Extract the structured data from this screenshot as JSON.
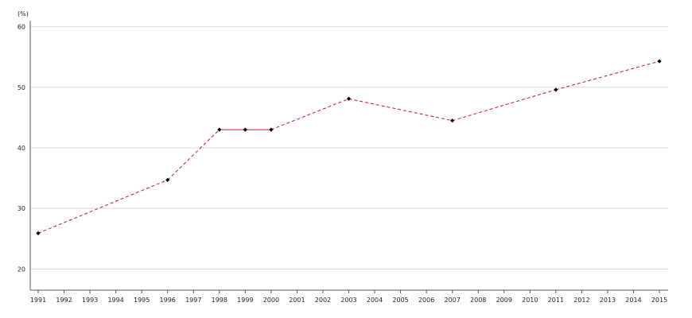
{
  "chart_data": {
    "type": "line",
    "unit_label": "(%)",
    "x_range": [
      1991,
      2015
    ],
    "x_ticks": [
      1991,
      1992,
      1993,
      1994,
      1995,
      1996,
      1997,
      1998,
      1999,
      2000,
      2001,
      2002,
      2003,
      2004,
      2005,
      2006,
      2007,
      2008,
      2009,
      2010,
      2011,
      2012,
      2013,
      2014,
      2015
    ],
    "ylim": [
      16.5,
      61
    ],
    "y_ticks": [
      20,
      30,
      40,
      50,
      60
    ],
    "grid": true,
    "series": [
      {
        "x": [
          1991,
          1996,
          1998,
          1999,
          2000,
          2003,
          2007,
          2011,
          2015
        ],
        "values": [
          25.9,
          34.7,
          43.0,
          43.0,
          43.0,
          48.1,
          44.5,
          49.6,
          54.3
        ]
      }
    ],
    "colors": {
      "line": "#c8102e",
      "marker": "#000000",
      "grid": "#d9d9d9",
      "axis": "#555555"
    }
  }
}
